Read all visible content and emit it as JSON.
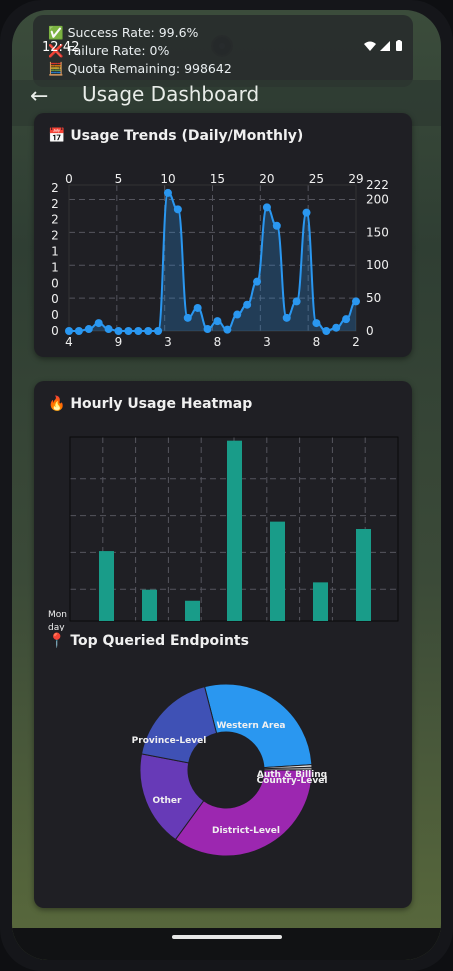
{
  "status_bar": {
    "time": "12:42",
    "icons": [
      "wifi-icon",
      "signal-icon",
      "battery-icon"
    ]
  },
  "notification": {
    "lines": [
      {
        "icon": "✅",
        "text": "Success Rate: 99.6%"
      },
      {
        "icon": "❌",
        "text": "Failure Rate: 0%"
      },
      {
        "icon": "🧮",
        "text": "Quota Remaining: 998642"
      }
    ]
  },
  "appbar": {
    "back_icon": "←",
    "title": "Usage Dashboard"
  },
  "trends": {
    "icon": "📅",
    "title": "Usage Trends (Daily/Monthly)",
    "chart_data": {
      "type": "line",
      "x_top_ticks": [
        "0",
        "5",
        "10",
        "15",
        "20",
        "25",
        "29"
      ],
      "x_bottom_ticks": [
        "4",
        "9",
        "3",
        "8",
        "3",
        "8",
        "2"
      ],
      "y_right_ticks": [
        "0",
        "50",
        "100",
        "150",
        "200",
        "222"
      ],
      "y_left_ticks": [
        "0",
        "0",
        "0",
        "0",
        "1",
        "1",
        "2",
        "2",
        "2",
        "2"
      ],
      "ylim": [
        0,
        222
      ],
      "xlim": [
        0,
        29
      ],
      "values": [
        0,
        0,
        3,
        12,
        3,
        0,
        0,
        0,
        0,
        0,
        210,
        185,
        20,
        35,
        3,
        15,
        2,
        25,
        40,
        75,
        188,
        160,
        20,
        45,
        180,
        12,
        0,
        5,
        18,
        45
      ]
    }
  },
  "heatmap": {
    "icon": "🔥",
    "title": "Hourly Usage Heatmap",
    "row_label_1": "Mon",
    "row_label_2": "day",
    "chart_data": {
      "type": "bar",
      "ylim": [
        0,
        1
      ],
      "values": [
        0.38,
        0.17,
        0.11,
        0.98,
        0.54,
        0.21,
        0.5
      ],
      "color": "#199c89"
    }
  },
  "endpoints": {
    "icon": "📍",
    "title": "Top Queried Endpoints",
    "chart_data": {
      "type": "pie",
      "slices": [
        {
          "label": "Western Area",
          "value": 28,
          "color": "#2a97f0"
        },
        {
          "label": "Auth & Billing",
          "value": 0.5,
          "color": "#e0e0e0"
        },
        {
          "label": "Country-Level",
          "value": 0.5,
          "color": "#a0a0a0"
        },
        {
          "label": "District-Level",
          "value": 35,
          "color": "#9c27b0"
        },
        {
          "label": "Other",
          "value": 18,
          "color": "#673ab7"
        },
        {
          "label": "Province-Level",
          "value": 18,
          "color": "#3f51b5"
        }
      ]
    }
  }
}
